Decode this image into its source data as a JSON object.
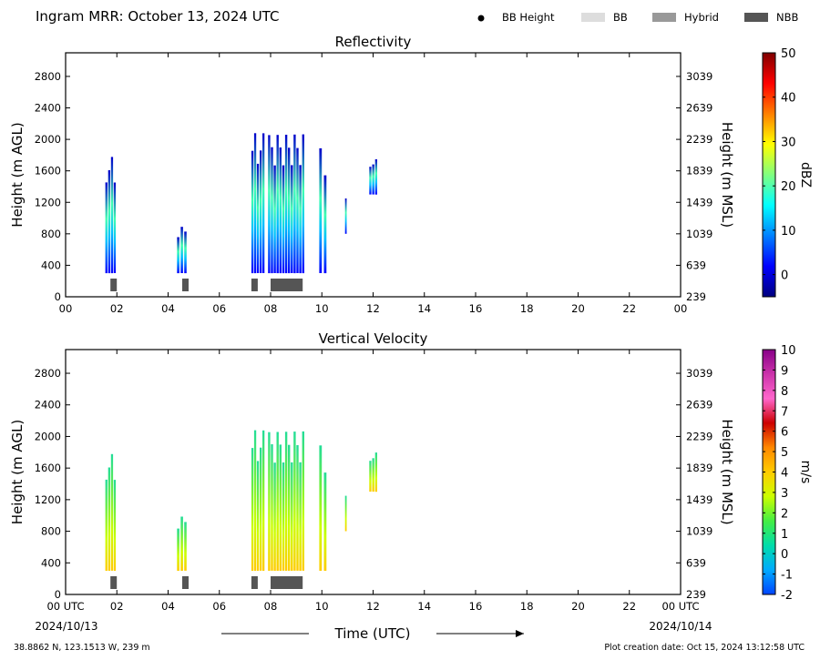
{
  "header": {
    "title": "Ingram MRR:  October 13, 2024 UTC",
    "legend": [
      {
        "label": "BB Height",
        "kind": "dot",
        "color": "#000000"
      },
      {
        "label": "BB",
        "kind": "swatch",
        "color": "#dddddd"
      },
      {
        "label": "Hybrid",
        "kind": "swatch",
        "color": "#999999"
      },
      {
        "label": "NBB",
        "kind": "swatch",
        "color": "#555555"
      }
    ]
  },
  "footer": {
    "x_axis_title": "Time (UTC)",
    "start_date": "2024/10/13",
    "end_date": "2024/10/14",
    "location": "38.8862 N, 123.1513 W, 239 m",
    "created": "Plot creation date: Oct 15, 2024 13:12:58 UTC"
  },
  "chart_data": [
    {
      "type": "heatmap",
      "title": "Reflectivity",
      "ylabel": "Height (m AGL)",
      "y2label": "Height (m MSL)",
      "xlim": [
        0,
        24
      ],
      "ylim": [
        0,
        3100
      ],
      "x_ticks": [
        "00",
        "02",
        "04",
        "06",
        "08",
        "10",
        "12",
        "14",
        "16",
        "18",
        "20",
        "22",
        "00"
      ],
      "x_tick_values": [
        0,
        2,
        4,
        6,
        8,
        10,
        12,
        14,
        16,
        18,
        20,
        22,
        24
      ],
      "y_ticks": [
        0,
        400,
        800,
        1200,
        1600,
        2000,
        2400,
        2800
      ],
      "y2_ticks": [
        "239",
        "639",
        "1039",
        "1439",
        "1839",
        "2239",
        "2639",
        "3039"
      ],
      "colorbar": {
        "label": "dBZ",
        "range": [
          -5,
          50
        ],
        "ticks": [
          "0",
          "10",
          "20",
          "30",
          "40",
          "50"
        ],
        "tick_values": [
          0,
          10,
          20,
          30,
          40,
          50
        ],
        "colors": [
          "#00007f",
          "#0000ff",
          "#0080ff",
          "#00ffff",
          "#80ff80",
          "#ffff00",
          "#ff8000",
          "#ff0000",
          "#7f0000"
        ]
      },
      "echo_columns": [
        {
          "start": 1.55,
          "end": 1.95,
          "top": 1800,
          "bottom": 300
        },
        {
          "start": 4.35,
          "end": 4.7,
          "top": 900,
          "bottom": 300
        },
        {
          "start": 7.25,
          "end": 7.75,
          "top": 2100,
          "bottom": 300
        },
        {
          "start": 7.9,
          "end": 9.3,
          "top": 2100,
          "bottom": 300
        },
        {
          "start": 9.9,
          "end": 10.15,
          "top": 1900,
          "bottom": 300
        },
        {
          "start": 10.9,
          "end": 10.98,
          "top": 1300,
          "bottom": 800
        },
        {
          "start": 11.85,
          "end": 12.15,
          "top": 1750,
          "bottom": 1300
        }
      ],
      "bright_band": [
        {
          "start": 1.75,
          "end": 2.0,
          "class": "NBB"
        },
        {
          "start": 4.55,
          "end": 4.8,
          "class": "NBB"
        },
        {
          "start": 7.25,
          "end": 7.5,
          "class": "NBB"
        },
        {
          "start": 8.0,
          "end": 9.25,
          "class": "NBB"
        }
      ]
    },
    {
      "type": "heatmap",
      "title": "Vertical Velocity",
      "ylabel": "Height (m AGL)",
      "y2label": "Height (m MSL)",
      "xlim": [
        0,
        24
      ],
      "ylim": [
        0,
        3100
      ],
      "x_ticks": [
        "00 UTC",
        "02",
        "04",
        "06",
        "08",
        "10",
        "12",
        "14",
        "16",
        "18",
        "20",
        "22",
        "00 UTC"
      ],
      "x_tick_values": [
        0,
        2,
        4,
        6,
        8,
        10,
        12,
        14,
        16,
        18,
        20,
        22,
        24
      ],
      "y_ticks": [
        0,
        400,
        800,
        1200,
        1600,
        2000,
        2400,
        2800
      ],
      "y2_ticks": [
        "239",
        "639",
        "1039",
        "1439",
        "1839",
        "2239",
        "2639",
        "3039"
      ],
      "colorbar": {
        "label": "m/s",
        "range": [
          -2,
          10
        ],
        "ticks": [
          "-2",
          "-1",
          "0",
          "1",
          "2",
          "3",
          "4",
          "5",
          "6",
          "7",
          "8",
          "9",
          "10"
        ],
        "tick_values": [
          -2,
          -1,
          0,
          1,
          2,
          3,
          4,
          5,
          6,
          7,
          8,
          9,
          10
        ],
        "colors": [
          "#0044ff",
          "#00aaff",
          "#00ddaa",
          "#44ee44",
          "#ccff00",
          "#ffcc00",
          "#ff8800",
          "#cc0000",
          "#ff66cc",
          "#cc33aa",
          "#880088"
        ]
      },
      "echo_columns": [
        {
          "start": 1.55,
          "end": 1.95,
          "top": 1800,
          "bottom": 300
        },
        {
          "start": 4.35,
          "end": 4.7,
          "top": 1000,
          "bottom": 300
        },
        {
          "start": 7.25,
          "end": 7.75,
          "top": 2100,
          "bottom": 300
        },
        {
          "start": 7.9,
          "end": 9.3,
          "top": 2100,
          "bottom": 300
        },
        {
          "start": 9.9,
          "end": 10.15,
          "top": 1900,
          "bottom": 300
        },
        {
          "start": 10.9,
          "end": 10.98,
          "top": 1300,
          "bottom": 800
        },
        {
          "start": 11.85,
          "end": 12.15,
          "top": 1800,
          "bottom": 1300
        }
      ],
      "bright_band": [
        {
          "start": 1.75,
          "end": 2.0,
          "class": "NBB"
        },
        {
          "start": 4.55,
          "end": 4.8,
          "class": "NBB"
        },
        {
          "start": 7.25,
          "end": 7.5,
          "class": "NBB"
        },
        {
          "start": 8.0,
          "end": 9.25,
          "class": "NBB"
        }
      ]
    }
  ]
}
